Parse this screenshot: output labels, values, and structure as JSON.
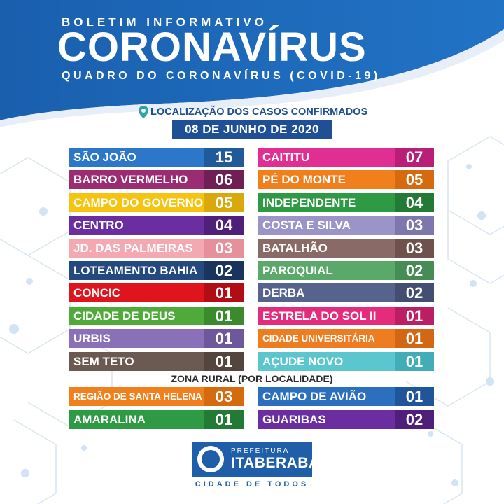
{
  "header": {
    "kicker": "BOLETIM INFORMATIVO",
    "title": "CORONAVÍRUS",
    "subtitle": "QUADRO DO CORONAVÍRUS (COVID-19)"
  },
  "location_label": "LOCALIZAÇÃO DOS CASOS CONFIRMADOS",
  "date": "08 DE JUNHO DE 2020",
  "colors": {
    "header_blue": "#1c67b7",
    "date_bg": "#1f4f95"
  },
  "urban_left": [
    {
      "name": "SÃO JOÃO",
      "value": "15",
      "color": "#2c77c9",
      "dark": "#215a9b"
    },
    {
      "name": "BARRO VERMELHO",
      "value": "06",
      "color": "#9b2c74",
      "dark": "#6f1f53"
    },
    {
      "name": "CAMPO DO GOVERNO",
      "value": "05",
      "color": "#f5c310",
      "dark": "#d9a80a"
    },
    {
      "name": "CENTRO",
      "value": "04",
      "color": "#6a2ea0",
      "dark": "#4f1f7a"
    },
    {
      "name": "JD. DAS PALMEIRAS",
      "value": "03",
      "color": "#f3a8b2",
      "dark": "#e6909c"
    },
    {
      "name": "LOTEAMENTO BAHIA",
      "value": "02",
      "color": "#24497e",
      "dark": "#1a355d"
    },
    {
      "name": "CONCIC",
      "value": "01",
      "color": "#e0141c",
      "dark": "#b20d14"
    },
    {
      "name": "CIDADE DE DEUS",
      "value": "01",
      "color": "#4faa3a",
      "dark": "#3b8a2b"
    },
    {
      "name": "URBIS",
      "value": "01",
      "color": "#8a70b8",
      "dark": "#6e579b"
    },
    {
      "name": "SEM TETO",
      "value": "01",
      "color": "#6b5a52",
      "dark": "#54453e"
    }
  ],
  "urban_right": [
    {
      "name": "CAITITU",
      "value": "07",
      "color": "#e02e93",
      "dark": "#b91f76"
    },
    {
      "name": "PÉ DO MONTE",
      "value": "05",
      "color": "#f07f1c",
      "dark": "#d56a0f"
    },
    {
      "name": "INDEPENDENTE",
      "value": "04",
      "color": "#2f9a44",
      "dark": "#237a34"
    },
    {
      "name": "COSTA E SILVA",
      "value": "03",
      "color": "#9a94c8",
      "dark": "#7d77ad"
    },
    {
      "name": "BATALHÃO",
      "value": "03",
      "color": "#8a6a66",
      "dark": "#6f524e"
    },
    {
      "name": "PAROQUIAL",
      "value": "02",
      "color": "#5aa86a",
      "dark": "#468c55"
    },
    {
      "name": "DERBA",
      "value": "02",
      "color": "#56638c",
      "dark": "#434e70"
    },
    {
      "name": "ESTRELA DO SOL II",
      "value": "01",
      "color": "#e42b7c",
      "dark": "#bb1e63"
    },
    {
      "name": "CIDADE UNIVERSITÁRIA",
      "value": "01",
      "color": "#ee7d22",
      "dark": "#d26813"
    },
    {
      "name": "AÇUDE NOVO",
      "value": "01",
      "color": "#5cc6cf",
      "dark": "#42adb6"
    }
  ],
  "rural_title": "ZONA RURAL (POR LOCALIDADE)",
  "rural_left": [
    {
      "name": "REGIÃO DE SANTA HELENA",
      "value": "03",
      "color": "#f07f1c",
      "dark": "#d56a0f"
    },
    {
      "name": "AMARALINA",
      "value": "01",
      "color": "#2f9a44",
      "dark": "#237a34"
    }
  ],
  "rural_right": [
    {
      "name": "CAMPO DE AVIÃO",
      "value": "01",
      "color": "#2c6fbf",
      "dark": "#21559a"
    },
    {
      "name": "GUARIBAS",
      "value": "02",
      "color": "#6a2ea0",
      "dark": "#4f1f7a"
    }
  ],
  "footer": {
    "prefeitura": "PREFEITURA",
    "city": "ITABERABA",
    "slogan": "CIDADE DE TODOS"
  }
}
